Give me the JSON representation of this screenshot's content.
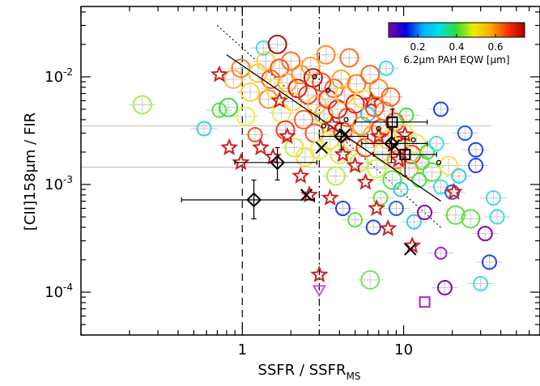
{
  "chart_data": {
    "type": "scatter",
    "xlabel": "SSFR / SSFR",
    "xlabel_sub": "MS",
    "ylabel": "[CII]158μm / FIR",
    "xscale": "log",
    "yscale": "log",
    "xlim": [
      0.1,
      70
    ],
    "ylim": [
      4e-05,
      0.045
    ],
    "xticks": [
      {
        "value": 1,
        "label": "1"
      },
      {
        "value": 10,
        "label": "10"
      }
    ],
    "yticks": [
      {
        "value": 0.01,
        "base": "10",
        "exp": "-2"
      },
      {
        "value": 0.001,
        "base": "10",
        "exp": "-3"
      },
      {
        "value": 0.0001,
        "base": "10",
        "exp": "-4"
      }
    ],
    "vlines": [
      {
        "x": 1,
        "style": "dashed"
      },
      {
        "x": 3,
        "style": "dashdot"
      }
    ],
    "fit_line": {
      "x": [
        0.8,
        17
      ],
      "y": [
        0.016,
        0.0007
      ]
    },
    "dotted_line": {
      "x": [
        0.7,
        17
      ],
      "y": [
        0.03,
        0.0004
      ]
    },
    "colorbar": {
      "label": "6.2μm PAH EQW [μm]",
      "ticks": [
        {
          "value": 0.2,
          "label": "0.2"
        },
        {
          "value": 0.4,
          "label": "0.4"
        },
        {
          "value": 0.6,
          "label": "0.6"
        }
      ],
      "range": [
        0.05,
        0.75
      ],
      "colors": [
        "#8800aa",
        "#0000dd",
        "#00b0ff",
        "#00e0e0",
        "#33dd33",
        "#eeee00",
        "#ffaa00",
        "#ff3300",
        "#aa0000"
      ]
    },
    "circles": [
      {
        "x": 0.24,
        "y": 0.0055,
        "c": "#a4f04c",
        "s": "l"
      },
      {
        "x": 0.58,
        "y": 0.0033,
        "c": "#2fd6e0",
        "s": "m"
      },
      {
        "x": 0.72,
        "y": 0.0049,
        "c": "#5ae23a",
        "s": "m"
      },
      {
        "x": 0.82,
        "y": 0.0052,
        "c": "#2ee03a",
        "s": "l"
      },
      {
        "x": 0.88,
        "y": 0.0095,
        "c": "#ffb24a",
        "s": "l"
      },
      {
        "x": 0.98,
        "y": 0.012,
        "c": "#ff7a1a",
        "s": "l"
      },
      {
        "x": 1.05,
        "y": 0.0043,
        "c": "#e8f040",
        "s": "l"
      },
      {
        "x": 1.12,
        "y": 0.0072,
        "c": "#ffd040",
        "s": "l"
      },
      {
        "x": 1.2,
        "y": 0.0029,
        "c": "#ff4a1a",
        "s": "m"
      },
      {
        "x": 1.25,
        "y": 0.0108,
        "c": "#ffc840",
        "s": "l"
      },
      {
        "x": 1.35,
        "y": 0.0185,
        "c": "#40d8f0",
        "s": "m"
      },
      {
        "x": 1.4,
        "y": 0.014,
        "c": "#ffd040",
        "s": "l"
      },
      {
        "x": 1.45,
        "y": 0.0062,
        "c": "#ff8a20",
        "s": "l"
      },
      {
        "x": 1.5,
        "y": 0.0095,
        "c": "#ff6020",
        "s": "l"
      },
      {
        "x": 1.58,
        "y": 0.0078,
        "c": "#ffe040",
        "s": "l"
      },
      {
        "x": 1.65,
        "y": 0.02,
        "c": "#aa1010",
        "s": "l"
      },
      {
        "x": 1.7,
        "y": 0.012,
        "c": "#ff5020",
        "s": "l"
      },
      {
        "x": 1.75,
        "y": 0.0046,
        "c": "#e8f040",
        "s": "l"
      },
      {
        "x": 1.85,
        "y": 0.0032,
        "c": "#ff3a1a",
        "s": "l"
      },
      {
        "x": 1.9,
        "y": 0.0088,
        "c": "#ffb030",
        "s": "l"
      },
      {
        "x": 2.0,
        "y": 0.014,
        "c": "#ff6a20",
        "s": "l"
      },
      {
        "x": 2.05,
        "y": 0.0059,
        "c": "#ffd040",
        "s": "l"
      },
      {
        "x": 2.1,
        "y": 0.0022,
        "c": "#c0f040",
        "s": "l"
      },
      {
        "x": 2.2,
        "y": 0.0078,
        "c": "#dd2010",
        "s": "l"
      },
      {
        "x": 2.3,
        "y": 0.0105,
        "c": "#ff8a20",
        "s": "l"
      },
      {
        "x": 2.4,
        "y": 0.004,
        "c": "#ff6020",
        "s": "l"
      },
      {
        "x": 2.45,
        "y": 0.0018,
        "c": "#ffe040",
        "s": "l"
      },
      {
        "x": 2.55,
        "y": 0.0068,
        "c": "#ff3a1a",
        "s": "l"
      },
      {
        "x": 2.65,
        "y": 0.0125,
        "c": "#ffa030",
        "s": "l"
      },
      {
        "x": 2.75,
        "y": 0.0098,
        "c": "#bb1818",
        "s": "l"
      },
      {
        "x": 2.8,
        "y": 0.003,
        "c": "#ff5020",
        "s": "l"
      },
      {
        "x": 2.9,
        "y": 0.0055,
        "c": "#ffc840",
        "s": "l"
      },
      {
        "x": 3.0,
        "y": 0.0021,
        "c": "#f0f040",
        "s": "l"
      },
      {
        "x": 3.1,
        "y": 0.0089,
        "c": "#ff4a1a",
        "s": "l"
      },
      {
        "x": 3.2,
        "y": 0.0045,
        "c": "#ffb030",
        "s": "l"
      },
      {
        "x": 3.3,
        "y": 0.016,
        "c": "#ff8a20",
        "s": "l"
      },
      {
        "x": 3.4,
        "y": 0.0062,
        "c": "#ff3020",
        "s": "l"
      },
      {
        "x": 3.5,
        "y": 0.0026,
        "c": "#ffd040",
        "s": "l"
      },
      {
        "x": 3.6,
        "y": 0.0035,
        "c": "#f0f040",
        "s": "l"
      },
      {
        "x": 3.7,
        "y": 0.0078,
        "c": "#ff6020",
        "s": "l"
      },
      {
        "x": 3.8,
        "y": 0.0012,
        "c": "#b0ee40",
        "s": "l"
      },
      {
        "x": 3.9,
        "y": 0.005,
        "c": "#cc2010",
        "s": "l"
      },
      {
        "x": 4.0,
        "y": 0.0019,
        "c": "#e8e840",
        "s": "l"
      },
      {
        "x": 4.1,
        "y": 0.0095,
        "c": "#ffa030",
        "s": "l"
      },
      {
        "x": 4.2,
        "y": 0.0031,
        "c": "#ff3a1a",
        "s": "l"
      },
      {
        "x": 4.3,
        "y": 0.0068,
        "c": "#ffd040",
        "s": "l"
      },
      {
        "x": 4.5,
        "y": 0.0042,
        "c": "#ff5020",
        "s": "l"
      },
      {
        "x": 4.6,
        "y": 0.015,
        "c": "#ff6a20",
        "s": "l"
      },
      {
        "x": 4.8,
        "y": 0.0025,
        "c": "#ffc840",
        "s": "l"
      },
      {
        "x": 5.0,
        "y": 0.0056,
        "c": "#e02010",
        "s": "l"
      },
      {
        "x": 5.1,
        "y": 0.0086,
        "c": "#ff7a20",
        "s": "l"
      },
      {
        "x": 5.3,
        "y": 0.0016,
        "c": "#c0f040",
        "s": "l"
      },
      {
        "x": 5.5,
        "y": 0.0035,
        "c": "#ff8a20",
        "s": "l"
      },
      {
        "x": 5.6,
        "y": 0.0062,
        "c": "#ffe040",
        "s": "l"
      },
      {
        "x": 5.8,
        "y": 0.0022,
        "c": "#ff3a1a",
        "s": "l"
      },
      {
        "x": 6.0,
        "y": 0.0045,
        "c": "#2fd0e8",
        "s": "m"
      },
      {
        "x": 6.2,
        "y": 0.0105,
        "c": "#ff6020",
        "s": "l"
      },
      {
        "x": 6.4,
        "y": 0.0029,
        "c": "#ffb030",
        "s": "l"
      },
      {
        "x": 6.6,
        "y": 0.0052,
        "c": "#ff5020",
        "s": "l"
      },
      {
        "x": 6.8,
        "y": 0.0014,
        "c": "#d0f040",
        "s": "l"
      },
      {
        "x": 7.0,
        "y": 0.0078,
        "c": "#ff8a20",
        "s": "l"
      },
      {
        "x": 7.2,
        "y": 0.0033,
        "c": "#ff3a1a",
        "s": "l"
      },
      {
        "x": 7.4,
        "y": 0.002,
        "c": "#e8e840",
        "s": "l"
      },
      {
        "x": 7.6,
        "y": 0.0048,
        "c": "#ff7a20",
        "s": "l"
      },
      {
        "x": 7.8,
        "y": 0.012,
        "c": "#40d8f0",
        "s": "m"
      },
      {
        "x": 8.0,
        "y": 0.0026,
        "c": "#ffc840",
        "s": "l"
      },
      {
        "x": 8.3,
        "y": 0.0065,
        "c": "#ff6020",
        "s": "l"
      },
      {
        "x": 8.5,
        "y": 0.0011,
        "c": "#60e040",
        "s": "l"
      },
      {
        "x": 8.8,
        "y": 0.0038,
        "c": "#ff5020",
        "s": "l"
      },
      {
        "x": 9.0,
        "y": 0.0017,
        "c": "#ff8a20",
        "s": "l"
      },
      {
        "x": 9.3,
        "y": 0.0023,
        "c": "#e02010",
        "s": "l"
      },
      {
        "x": 9.6,
        "y": 0.0009,
        "c": "#30c8f0",
        "s": "m"
      },
      {
        "x": 10.0,
        "y": 0.003,
        "c": "#e8f040",
        "s": "l"
      },
      {
        "x": 10.4,
        "y": 0.0044,
        "c": "#40e040",
        "s": "m"
      },
      {
        "x": 10.8,
        "y": 0.0014,
        "c": "#ffb030",
        "s": "l"
      },
      {
        "x": 11.2,
        "y": 0.0019,
        "c": "#ff3a1a",
        "s": "l"
      },
      {
        "x": 11.6,
        "y": 0.00045,
        "c": "#30c8f0",
        "s": "m"
      },
      {
        "x": 12.0,
        "y": 0.0024,
        "c": "#e0f040",
        "s": "l"
      },
      {
        "x": 12.5,
        "y": 0.0011,
        "c": "#40e040",
        "s": "m"
      },
      {
        "x": 13.0,
        "y": 0.0016,
        "c": "#60e040",
        "s": "m"
      },
      {
        "x": 13.5,
        "y": 0.00055,
        "c": "#8800aa",
        "s": "m"
      },
      {
        "x": 14.0,
        "y": 0.002,
        "c": "#40e040",
        "s": "m"
      },
      {
        "x": 15.0,
        "y": 0.0013,
        "c": "#60e040",
        "s": "l"
      },
      {
        "x": 16.0,
        "y": 0.0024,
        "c": "#40d8f0",
        "s": "m"
      },
      {
        "x": 17.0,
        "y": 0.00095,
        "c": "#40d8f0",
        "s": "m"
      },
      {
        "x": 18.0,
        "y": 0.00011,
        "c": "#8800aa",
        "s": "m"
      },
      {
        "x": 19.0,
        "y": 0.0015,
        "c": "#ffe040",
        "s": "l"
      },
      {
        "x": 20.0,
        "y": 0.00085,
        "c": "#2060ee",
        "s": "m"
      },
      {
        "x": 21.0,
        "y": 0.00052,
        "c": "#60e040",
        "s": "l"
      },
      {
        "x": 22.0,
        "y": 0.0012,
        "c": "#30c8f0",
        "s": "m"
      },
      {
        "x": 24.0,
        "y": 0.003,
        "c": "#2060ee",
        "s": "m"
      },
      {
        "x": 26.0,
        "y": 0.00048,
        "c": "#60e040",
        "s": "l"
      },
      {
        "x": 28.0,
        "y": 0.0015,
        "c": "#2040ee",
        "s": "m"
      },
      {
        "x": 28.0,
        "y": 0.0021,
        "c": "#2040ee",
        "s": "m"
      },
      {
        "x": 30.0,
        "y": 0.00012,
        "c": "#40d8f0",
        "s": "m"
      },
      {
        "x": 32.0,
        "y": 0.00035,
        "c": "#8800aa",
        "s": "m"
      },
      {
        "x": 34.0,
        "y": 0.00019,
        "c": "#2040ee",
        "s": "m"
      },
      {
        "x": 36.0,
        "y": 0.00075,
        "c": "#40d8f0",
        "s": "m"
      },
      {
        "x": 38.0,
        "y": 0.0005,
        "c": "#40d8f0",
        "s": "m"
      },
      {
        "x": 5.0,
        "y": 0.00047,
        "c": "#60e040",
        "s": "m"
      },
      {
        "x": 4.2,
        "y": 0.0006,
        "c": "#2040ee",
        "s": "m"
      },
      {
        "x": 6.5,
        "y": 0.0004,
        "c": "#2040ee",
        "s": "m"
      },
      {
        "x": 7.2,
        "y": 0.00075,
        "c": "#60e040",
        "s": "m"
      },
      {
        "x": 9.0,
        "y": 0.0006,
        "c": "#2060ee",
        "s": "m"
      },
      {
        "x": 6.2,
        "y": 0.00013,
        "c": "#7ae060",
        "s": "l"
      },
      {
        "x": 17.0,
        "y": 0.00023,
        "c": "#aa22cc",
        "s": "s"
      },
      {
        "x": 17.0,
        "y": 0.005,
        "c": "#2040ee",
        "s": "m"
      }
    ],
    "stars": [
      {
        "x": 0.72,
        "y": 0.0105
      },
      {
        "x": 0.83,
        "y": 0.0022
      },
      {
        "x": 0.98,
        "y": 0.0016
      },
      {
        "x": 1.3,
        "y": 0.0022
      },
      {
        "x": 1.55,
        "y": 0.0018
      },
      {
        "x": 1.9,
        "y": 0.0028
      },
      {
        "x": 2.6,
        "y": 0.0008
      },
      {
        "x": 3.0,
        "y": 0.000145
      },
      {
        "x": 3.5,
        "y": 0.00075
      },
      {
        "x": 4.2,
        "y": 0.0019
      },
      {
        "x": 5.0,
        "y": 0.0015
      },
      {
        "x": 5.8,
        "y": 0.00105
      },
      {
        "x": 6.3,
        "y": 0.006
      },
      {
        "x": 7.0,
        "y": 0.0028
      },
      {
        "x": 8.0,
        "y": 0.00039
      },
      {
        "x": 9.3,
        "y": 0.0017
      },
      {
        "x": 10.2,
        "y": 0.0029
      },
      {
        "x": 11.3,
        "y": 0.00027
      },
      {
        "x": 20.5,
        "y": 0.00085
      },
      {
        "x": 1.7,
        "y": 0.006
      },
      {
        "x": 2.3,
        "y": 0.0012
      },
      {
        "x": 6.8,
        "y": 0.0006
      },
      {
        "x": 3.6,
        "y": 0.0036
      }
    ],
    "diamonds": [
      {
        "x": 1.18,
        "y": 0.00072,
        "xerr": [
          0.42,
          2.8
        ],
        "yerr": [
          0.00048,
          0.0011
        ]
      },
      {
        "x": 1.65,
        "y": 0.0016,
        "xerr": [
          0.9,
          2.9
        ],
        "yerr": [
          0.0011,
          0.0022
        ]
      },
      {
        "x": 4.1,
        "y": 0.0028,
        "xerr": [
          3.0,
          6.0
        ],
        "yerr": [
          0.0021,
          0.0037
        ]
      },
      {
        "x": 8.4,
        "y": 0.0024,
        "xerr": [
          5.5,
          14.0
        ],
        "yerr": [
          0.0016,
          0.0033
        ]
      }
    ],
    "crosses": [
      {
        "x": 2.5,
        "y": 0.0008
      },
      {
        "x": 3.1,
        "y": 0.0022
      },
      {
        "x": 4.3,
        "y": 0.0029
      },
      {
        "x": 8.7,
        "y": 0.0023
      },
      {
        "x": 11.0,
        "y": 0.00025
      }
    ],
    "squares": [
      {
        "x": 8.5,
        "y": 0.0038,
        "xerr": [
          5.0,
          14.0
        ],
        "yerr": [
          0.0027,
          0.005
        ],
        "c": "#000000"
      },
      {
        "x": 10.2,
        "y": 0.0019,
        "xerr": [
          6.5,
          16.0
        ],
        "yerr": [
          0.0012,
          0.0028
        ],
        "c": "#000000"
      },
      {
        "x": 13.5,
        "y": 8.1e-05,
        "xerr": null,
        "yerr": null,
        "c": "#aa22cc"
      }
    ],
    "small_dots": [
      {
        "x": 3.4,
        "y": 0.0075
      },
      {
        "x": 4.4,
        "y": 0.004
      },
      {
        "x": 3.2,
        "y": 0.0035
      },
      {
        "x": 7.0,
        "y": 0.0033
      },
      {
        "x": 16.5,
        "y": 0.0016
      },
      {
        "x": 2.8,
        "y": 0.01
      },
      {
        "x": 11.5,
        "y": 0.0026
      }
    ],
    "triangles": [
      {
        "x": 3.0,
        "y": 0.000105,
        "c": "#cc44dd"
      }
    ],
    "hlines": [
      {
        "y": 0.0035,
        "x1": 0.1,
        "x2": 35
      },
      {
        "y": 0.00145,
        "x1": 0.1,
        "x2": 18
      }
    ]
  }
}
